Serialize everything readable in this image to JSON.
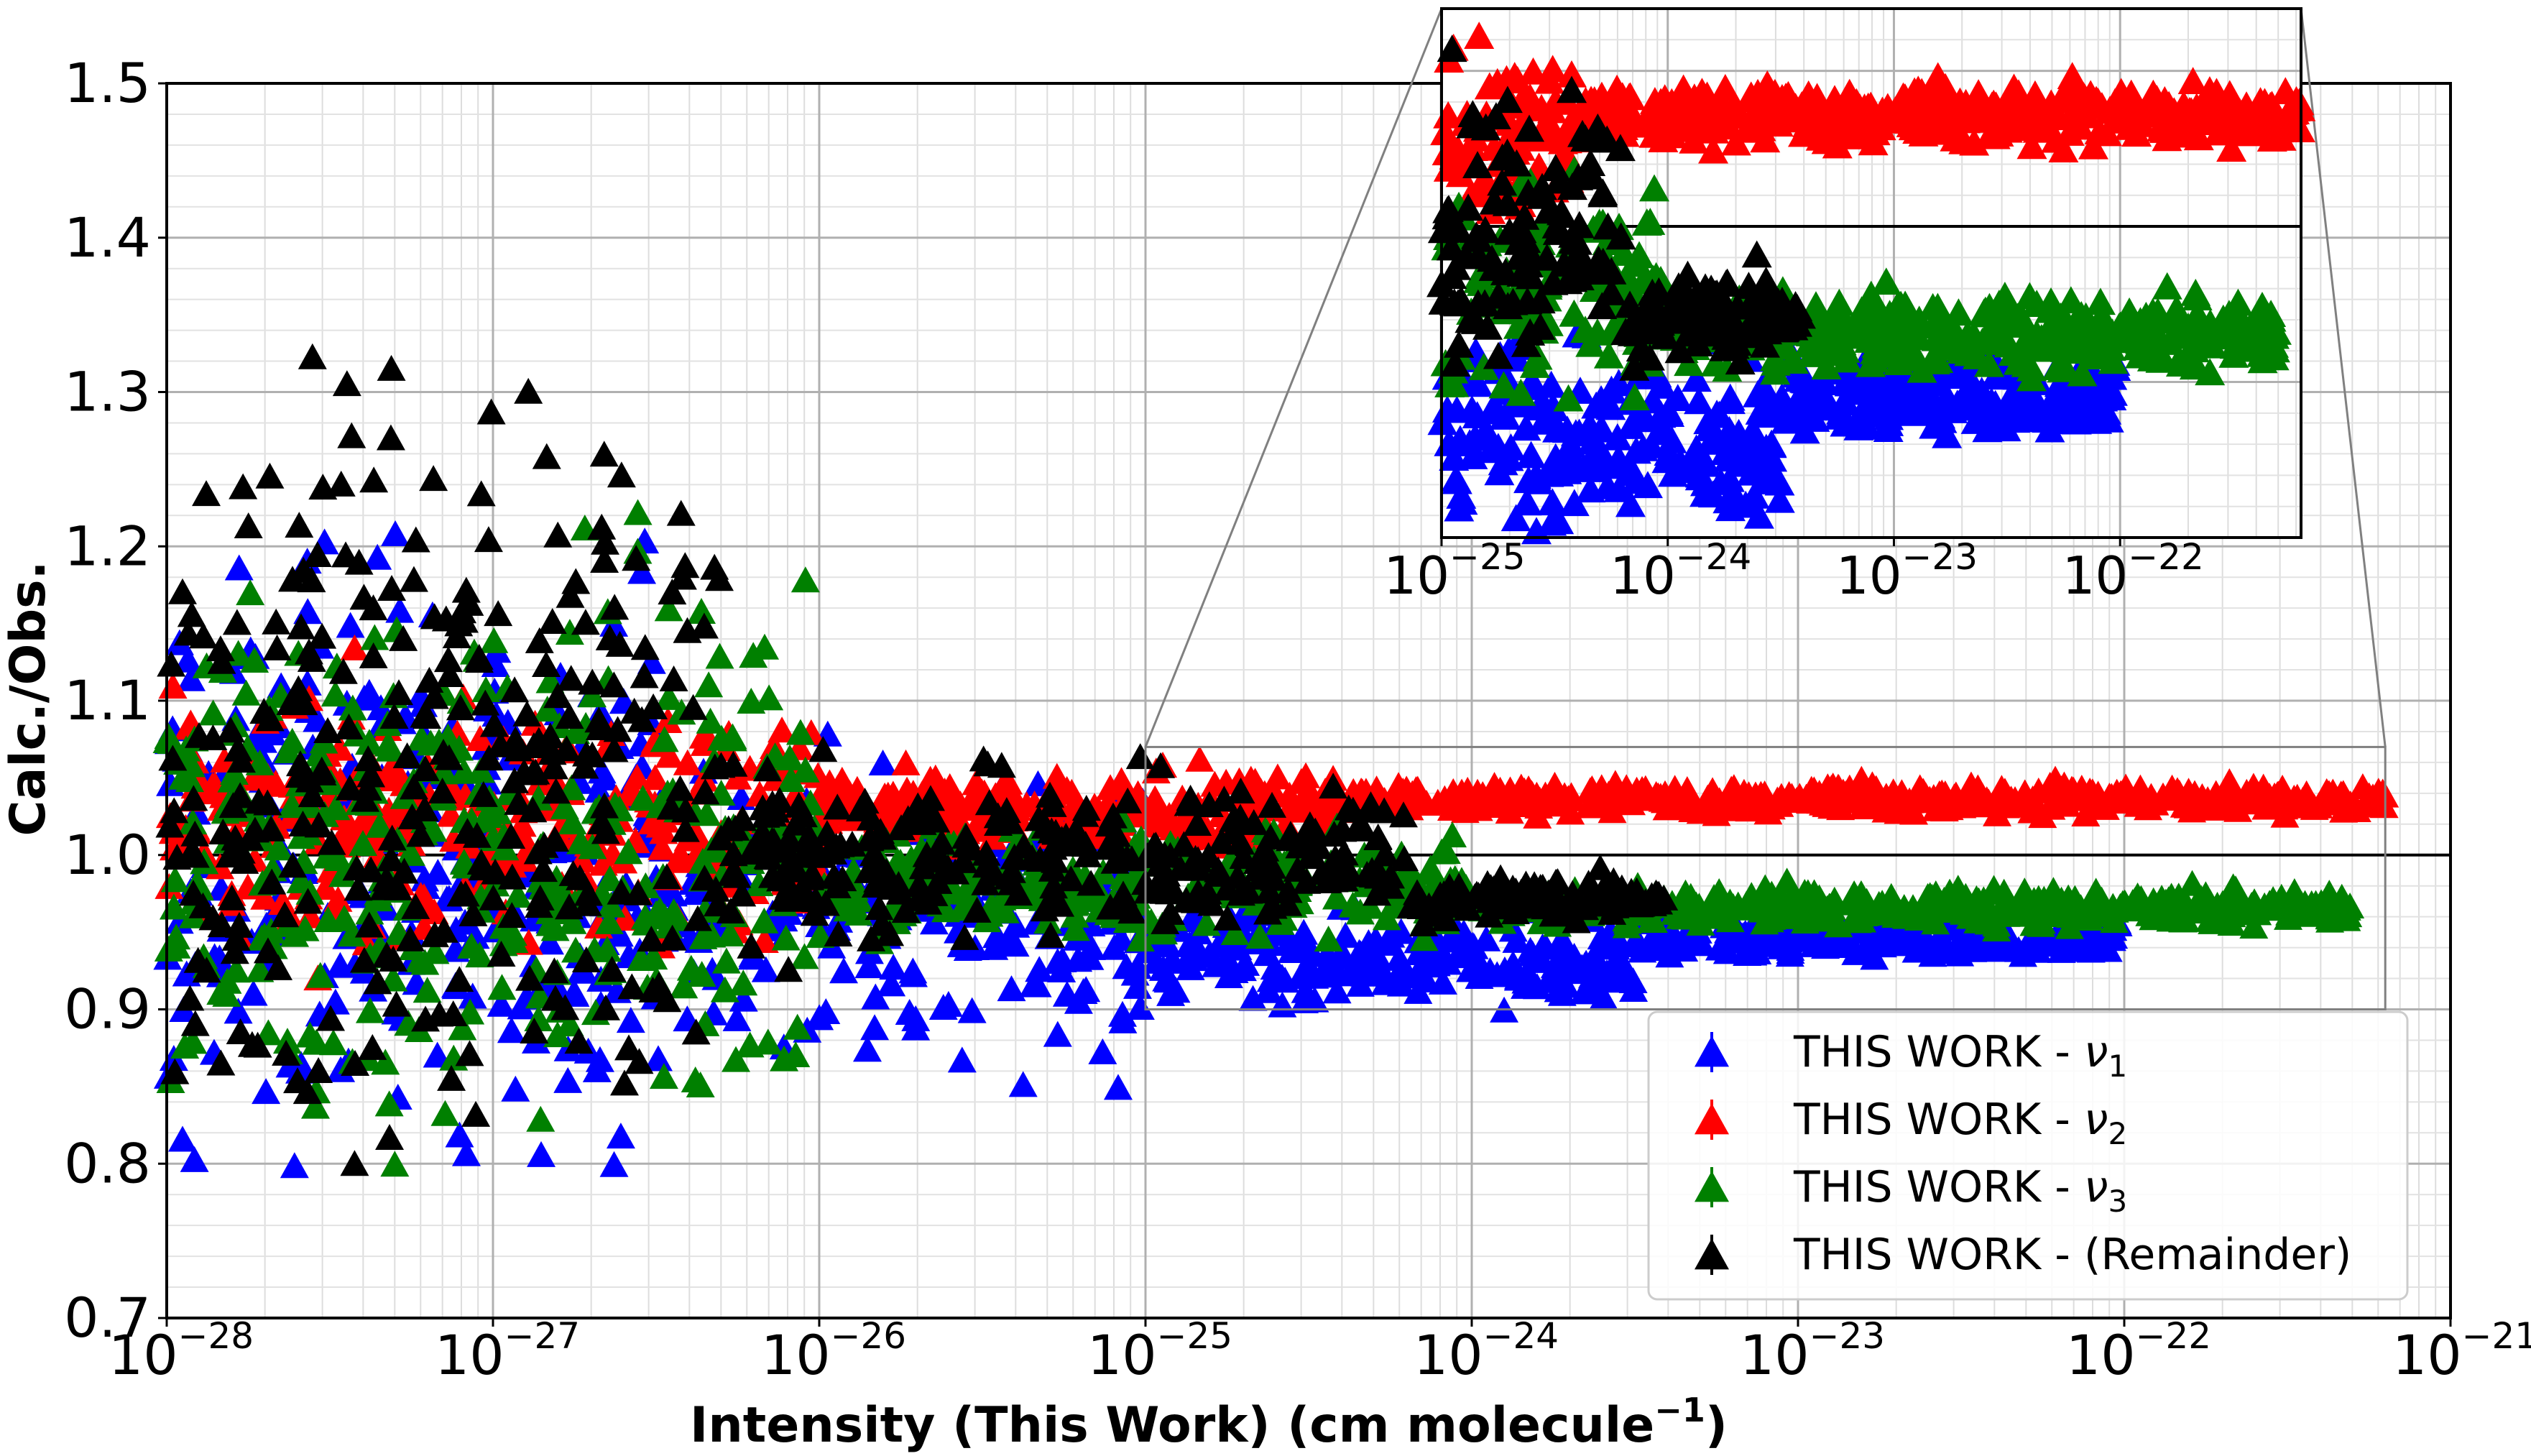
{
  "chart_data": {
    "type": "scatter",
    "title": "",
    "xlabel": "Intensity (This Work) (cm molecule",
    "xlabel_superscript": "−1",
    "xlabel_suffix": ")",
    "ylabel": "Calc./Obs.",
    "xscale": "log",
    "xlim_exponents": [
      -28,
      -21
    ],
    "ylim": [
      0.7,
      1.5
    ],
    "x_ticks": [
      {
        "base": "10",
        "exp": "−28"
      },
      {
        "base": "10",
        "exp": "−27"
      },
      {
        "base": "10",
        "exp": "−26"
      },
      {
        "base": "10",
        "exp": "−25"
      },
      {
        "base": "10",
        "exp": "−24"
      },
      {
        "base": "10",
        "exp": "−23"
      },
      {
        "base": "10",
        "exp": "−22"
      },
      {
        "base": "10",
        "exp": "−21"
      }
    ],
    "y_ticks": [
      "0.7",
      "0.8",
      "0.9",
      "1.0",
      "1.1",
      "1.2",
      "1.3",
      "1.4",
      "1.5"
    ],
    "reference_line_y": 1.0,
    "grid": true,
    "marker": "triangle-up",
    "legend_position": "lower-right",
    "legend": [
      {
        "label": "THIS WORK - ",
        "symbol": "ν",
        "subscript": "1",
        "color": "#0000ff"
      },
      {
        "label": "THIS WORK - ",
        "symbol": "ν",
        "subscript": "2",
        "color": "#ff0000"
      },
      {
        "label": "THIS WORK - ",
        "symbol": "ν",
        "subscript": "3",
        "color": "#008000"
      },
      {
        "label": "THIS WORK - (Remainder)",
        "symbol": "",
        "subscript": "",
        "color": "#000000"
      }
    ],
    "series": [
      {
        "name": "ν1",
        "color": "#0000ff",
        "bands": [
          {
            "log_intensity": [
              -28.0,
              -26.5
            ],
            "ratio_center": 1.0,
            "ratio_spread": 0.16
          },
          {
            "log_intensity": [
              -26.5,
              -25.0
            ],
            "ratio_center": 0.96,
            "ratio_spread": 0.08
          },
          {
            "log_intensity": [
              -25.0,
              -23.5
            ],
            "ratio_center": 0.93,
            "ratio_spread": 0.025
          },
          {
            "log_intensity": [
              -23.5,
              -22.0
            ],
            "ratio_center": 0.945,
            "ratio_spread": 0.01
          }
        ]
      },
      {
        "name": "ν2",
        "color": "#ff0000",
        "bands": [
          {
            "log_intensity": [
              -28.0,
              -26.0
            ],
            "ratio_center": 1.02,
            "ratio_spread": 0.07
          },
          {
            "log_intensity": [
              -26.0,
              -24.4
            ],
            "ratio_center": 1.03,
            "ratio_spread": 0.02
          },
          {
            "log_intensity": [
              -24.4,
              -21.2
            ],
            "ratio_center": 1.035,
            "ratio_spread": 0.008
          }
        ]
      },
      {
        "name": "ν3",
        "color": "#008000",
        "bands": [
          {
            "log_intensity": [
              -28.0,
              -26.0
            ],
            "ratio_center": 1.0,
            "ratio_spread": 0.14
          },
          {
            "log_intensity": [
              -26.0,
              -24.0
            ],
            "ratio_center": 0.98,
            "ratio_spread": 0.03
          },
          {
            "log_intensity": [
              -24.0,
              -21.3
            ],
            "ratio_center": 0.965,
            "ratio_spread": 0.01
          }
        ]
      },
      {
        "name": "Remainder",
        "color": "#000000",
        "bands": [
          {
            "log_intensity": [
              -28.0,
              -26.3
            ],
            "ratio_center": 1.05,
            "ratio_spread": 0.2
          },
          {
            "log_intensity": [
              -26.3,
              -25.0
            ],
            "ratio_center": 1.0,
            "ratio_spread": 0.05
          },
          {
            "log_intensity": [
              -25.0,
              -24.2
            ],
            "ratio_center": 1.0,
            "ratio_spread": 0.035
          },
          {
            "log_intensity": [
              -24.2,
              -23.4
            ],
            "ratio_center": 0.97,
            "ratio_spread": 0.012
          }
        ]
      }
    ],
    "inset": {
      "xlim_exponents": [
        -25.0,
        -21.2
      ],
      "ylim": [
        0.9,
        1.07
      ],
      "x_ticks": [
        {
          "base": "10",
          "exp": "−25"
        },
        {
          "base": "10",
          "exp": "−24"
        },
        {
          "base": "10",
          "exp": "−23"
        },
        {
          "base": "10",
          "exp": "−22"
        }
      ],
      "reference_line_y": 1.0,
      "grid": true
    }
  }
}
